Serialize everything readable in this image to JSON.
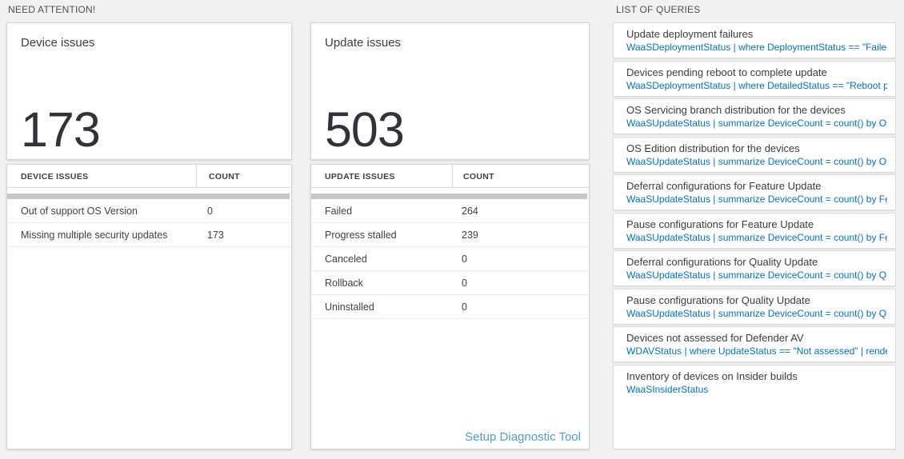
{
  "colors": {
    "page_bg": "#f1f1f1",
    "query_blue": "#0072c6",
    "link_blue": "#4aa0dc",
    "number_color": "#32333a",
    "scrollbar_gray": "#c8c8c8"
  },
  "sections": {
    "need_attention_label": "NEED ATTENTION!",
    "queries_label": "LIST OF QUERIES"
  },
  "device_card": {
    "title": "Device issues",
    "count": "173",
    "table": {
      "headers": [
        "DEVICE ISSUES",
        "COUNT"
      ],
      "rows": [
        {
          "name": "Out of support OS Version",
          "count": "0"
        },
        {
          "name": "Missing multiple security updates",
          "count": "173"
        }
      ]
    }
  },
  "update_card": {
    "title": "Update issues",
    "count": "503",
    "table": {
      "headers": [
        "UPDATE ISSUES",
        "COUNT"
      ],
      "rows": [
        {
          "name": "Failed",
          "count": "264"
        },
        {
          "name": "Progress stalled",
          "count": "239"
        },
        {
          "name": "Canceled",
          "count": "0"
        },
        {
          "name": "Rollback",
          "count": "0"
        },
        {
          "name": "Uninstalled",
          "count": "0"
        }
      ]
    },
    "footer_link": "Setup Diagnostic Tool"
  },
  "queries": [
    {
      "title": "Update deployment failures",
      "query": "WaaSDeploymentStatus | where DeploymentStatus == \"Failed\" |..."
    },
    {
      "title": "Devices pending reboot to complete update",
      "query": "WaaSDeploymentStatus | where DetailedStatus == \"Reboot pend..."
    },
    {
      "title": "OS Servicing branch distribution for the devices",
      "query": "WaaSUpdateStatus | summarize DeviceCount = count() by OSSer..."
    },
    {
      "title": "OS Edition distribution for the devices",
      "query": "WaaSUpdateStatus | summarize DeviceCount = count() by OSEdit..."
    },
    {
      "title": "Deferral configurations for Feature Update",
      "query": "WaaSUpdateStatus | summarize DeviceCount = count() by Featur..."
    },
    {
      "title": "Pause configurations for Feature Update",
      "query": "WaaSUpdateStatus | summarize DeviceCount = count() by Featur..."
    },
    {
      "title": "Deferral configurations for Quality Update",
      "query": "WaaSUpdateStatus | summarize DeviceCount = count() by Qualit..."
    },
    {
      "title": "Pause configurations for Quality Update",
      "query": "WaaSUpdateStatus | summarize DeviceCount = count() by Qualit..."
    },
    {
      "title": "Devices not assessed for Defender AV",
      "query": "WDAVStatus | where UpdateStatus == \"Not assessed\" | render ta..."
    },
    {
      "title": "Inventory of devices on Insider builds",
      "query": "WaaSInsiderStatus"
    }
  ]
}
